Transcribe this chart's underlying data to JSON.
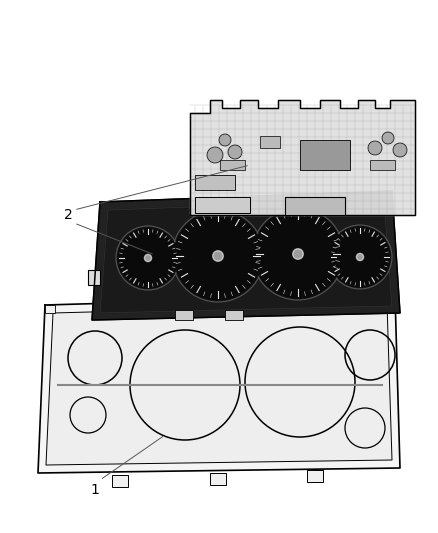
{
  "bg_color": "#ffffff",
  "line_color": "#000000",
  "label1": "1",
  "label2": "2",
  "figsize": [
    4.38,
    5.33
  ],
  "dpi": 100
}
